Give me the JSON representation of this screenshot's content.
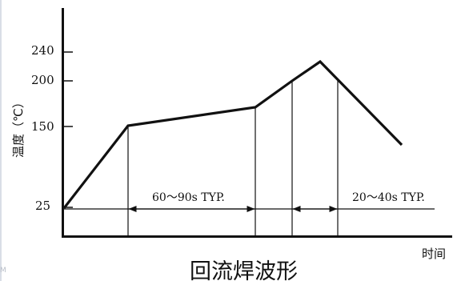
{
  "chart_data": {
    "type": "line",
    "title": "回流焊波形",
    "xlabel": "时间",
    "ylabel": "温度（℃）",
    "y_ticks": [
      25,
      150,
      200,
      240
    ],
    "profile": {
      "name": "",
      "points": [
        {
          "stage": "start",
          "temp": 25
        },
        {
          "stage": "preheat-end",
          "temp": 150
        },
        {
          "stage": "soak-end",
          "temp": 183
        },
        {
          "stage": "reflow-rise",
          "temp": 200
        },
        {
          "stage": "peak",
          "temp": 250
        },
        {
          "stage": "cool-200",
          "temp": 200
        },
        {
          "stage": "end",
          "temp": 105
        }
      ]
    },
    "annotations": [
      {
        "label": "60～90s TYP.",
        "from": "preheat-end",
        "to": "soak-end"
      },
      {
        "label": "20～40s TYP.",
        "from": "cool-200",
        "to": "after-end"
      }
    ],
    "colors": {
      "line": "#111111",
      "text": "#111111",
      "background": "#ffffff"
    }
  },
  "artifacts": {
    "left_glyph": "M"
  }
}
